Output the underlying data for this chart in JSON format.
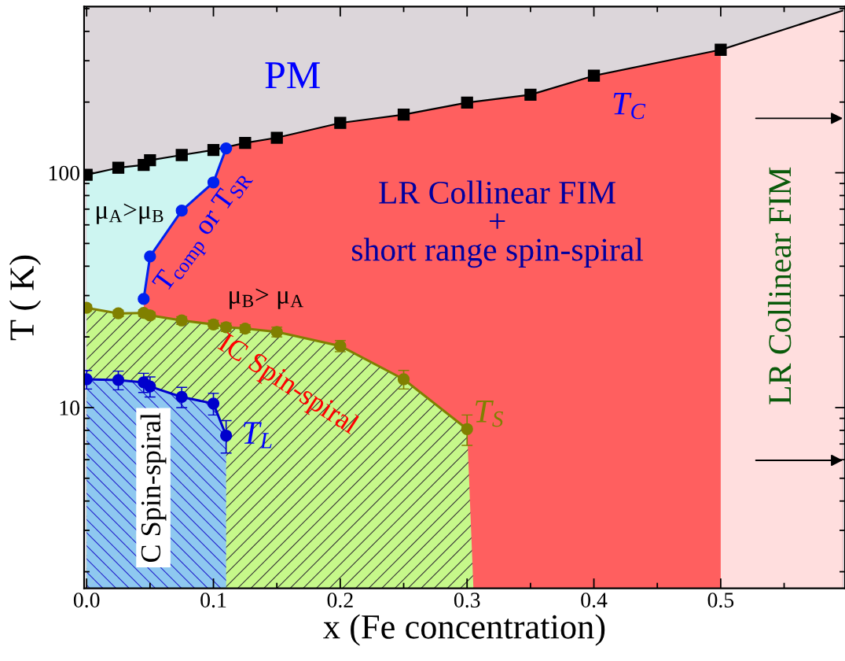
{
  "chart_data": {
    "type": "line",
    "xlabel": "x (Fe concentration)",
    "ylabel": "T ( K)",
    "log": "y",
    "xlim": [
      -0.002,
      0.598
    ],
    "ylim": [
      1.7,
      510
    ],
    "xticks": [
      {
        "value": 0,
        "label": "0.0"
      },
      0.1,
      0.2,
      0.3,
      0.4,
      0.5
    ],
    "yticks": [
      10,
      100
    ],
    "bands": [
      {
        "axis": "y",
        "from": 1.7,
        "to": 510,
        "color": "#dcd6da"
      },
      {
        "axis": "x",
        "from": 0.5,
        "to": 0.598,
        "color": "#ffdede",
        "label": "LR Collinear FIM"
      }
    ],
    "series": [
      {
        "color": "#000000",
        "marker": "square",
        "x": [
          0.0,
          0.025,
          0.045,
          0.05,
          0.075,
          0.1,
          0.125,
          0.15,
          0.2,
          0.25,
          0.3,
          0.35,
          0.4,
          0.5
        ],
        "values": [
          98,
          105,
          108,
          113,
          119,
          125,
          134,
          141,
          163,
          177,
          199,
          215,
          259,
          334
        ]
      },
      {
        "color": "#000000",
        "marker": "none",
        "x": [
          0.5,
          0.596
        ],
        "values": [
          334,
          490
        ]
      },
      {
        "color": "#0022ee",
        "marker": "circle",
        "x": [
          0.045,
          0.05,
          0.075,
          0.1,
          0.11
        ],
        "values": [
          29,
          44,
          69,
          91,
          127
        ]
      },
      {
        "color": "#808000",
        "marker": "circle",
        "x": [
          0.0,
          0.025,
          0.045,
          0.05,
          0.075,
          0.1,
          0.11,
          0.125,
          0.15,
          0.2,
          0.25,
          0.3
        ],
        "values": [
          26.6,
          25.2,
          25.3,
          24.7,
          23.5,
          22.6,
          22.0,
          21.7,
          21.0,
          18.3,
          13.2,
          8.1
        ],
        "errors": [
          0.8,
          0.8,
          0.8,
          0.8,
          0.9,
          0.9,
          0.9,
          0.8,
          1.0,
          1.0,
          1.2,
          1.2
        ]
      },
      {
        "color": "#0000cc",
        "marker": "circle",
        "x": [
          0.0,
          0.025,
          0.045,
          0.05,
          0.075,
          0.1,
          0.11
        ],
        "values": [
          13.2,
          13.1,
          12.8,
          12.3,
          11.1,
          10.4,
          7.6
        ],
        "errors": [
          1.2,
          1.2,
          1.2,
          1.2,
          1.1,
          1.1,
          1.2
        ]
      }
    ],
    "annotations": [
      "PM",
      "μ$_{A}$>μ$_{B}$",
      "T$_{comp}$ or T$_{SR}$",
      "μ$_{B}$> μ$_{A}$",
      "LR Collinear FIM\n+\nshort range spin-spiral",
      "T$_{C}$",
      "IC Spin-spiral",
      "T$_{S}$",
      "T$_{L}$",
      "C Spin-spiral"
    ]
  }
}
